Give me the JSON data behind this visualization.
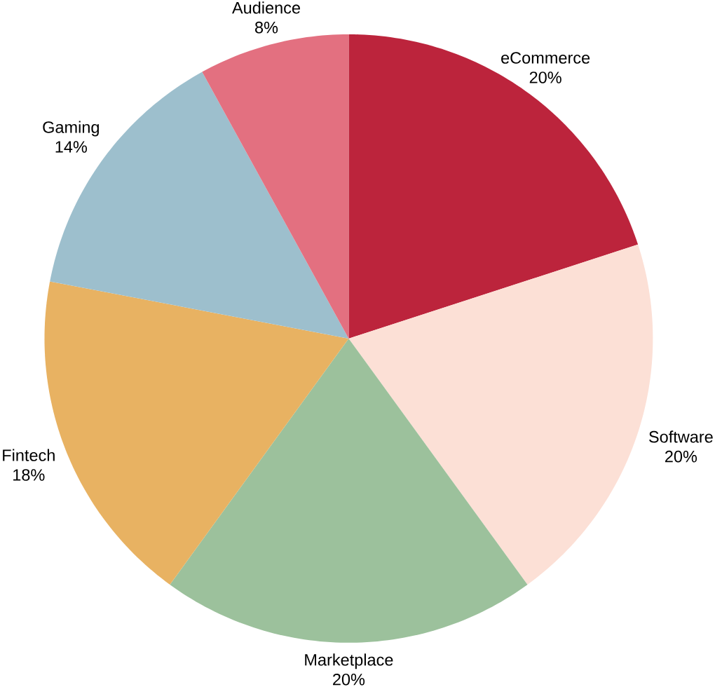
{
  "chart_data": {
    "type": "pie",
    "categories": [
      "eCommerce",
      "Software",
      "Marketplace",
      "Fintech",
      "Gaming",
      "Audience"
    ],
    "values": [
      20,
      20,
      20,
      18,
      14,
      8
    ],
    "value_labels": [
      "20%",
      "20%",
      "20%",
      "18%",
      "14%",
      "8%"
    ],
    "colors": [
      "#bc243c",
      "#fce0d6",
      "#9cc19c",
      "#e8b262",
      "#9dbfcd",
      "#e37080"
    ]
  }
}
